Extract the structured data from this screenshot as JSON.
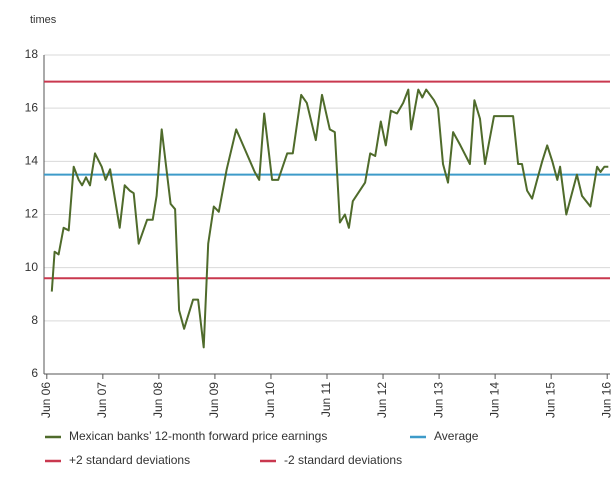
{
  "chart_data": {
    "type": "line",
    "y_axis_label": "times",
    "xlim": [
      2006.45,
      2016.55
    ],
    "xticks": [
      {
        "value": 2006.5,
        "label": "Jun 06"
      },
      {
        "value": 2007.5,
        "label": "Jun 07"
      },
      {
        "value": 2008.5,
        "label": "Jun 08"
      },
      {
        "value": 2009.5,
        "label": "Jun 09"
      },
      {
        "value": 2010.5,
        "label": "Jun 10"
      },
      {
        "value": 2011.5,
        "label": "Jun 11"
      },
      {
        "value": 2012.5,
        "label": "Jun 12"
      },
      {
        "value": 2013.5,
        "label": "Jun 13"
      },
      {
        "value": 2014.5,
        "label": "Jun 14"
      },
      {
        "value": 2015.5,
        "label": "Jun 15"
      },
      {
        "value": 2016.5,
        "label": "Jun 16"
      }
    ],
    "ylim": [
      6,
      18
    ],
    "yticks": [
      6,
      8,
      10,
      12,
      14,
      16,
      18
    ],
    "grid": true,
    "series": [
      {
        "name": "Mexican banks’ 12-month forward price earnings",
        "color": "#4f6b2b",
        "x": [
          2006.59,
          2006.64,
          2006.71,
          2006.8,
          2006.89,
          2006.98,
          2007.07,
          2007.13,
          2007.2,
          2007.27,
          2007.36,
          2007.48,
          2007.55,
          2007.63,
          2007.8,
          2007.89,
          2007.98,
          2008.05,
          2008.14,
          2008.29,
          2008.39,
          2008.46,
          2008.55,
          2008.71,
          2008.79,
          2008.86,
          2008.95,
          2009.11,
          2009.2,
          2009.3,
          2009.38,
          2009.48,
          2009.57,
          2009.71,
          2009.88,
          2010.21,
          2010.29,
          2010.38,
          2010.52,
          2010.63,
          2010.79,
          2010.89,
          2011.04,
          2011.14,
          2011.3,
          2011.41,
          2011.55,
          2011.64,
          2011.73,
          2011.82,
          2011.89,
          2011.96,
          2012.18,
          2012.27,
          2012.36,
          2012.46,
          2012.55,
          2012.64,
          2012.75,
          2012.86,
          2012.95,
          2013.0,
          2013.13,
          2013.2,
          2013.27,
          2013.41,
          2013.48,
          2013.57,
          2013.66,
          2013.75,
          2013.88,
          2014.05,
          2014.13,
          2014.23,
          2014.32,
          2014.48,
          2014.73,
          2014.82,
          2014.91,
          2014.98,
          2015.07,
          2015.16,
          2015.25,
          2015.34,
          2015.43,
          2015.52,
          2015.61,
          2015.66,
          2015.77,
          2015.96,
          2016.05,
          2016.2,
          2016.32,
          2016.38,
          2016.45,
          2016.52
        ],
        "values": [
          9.1,
          10.6,
          10.5,
          11.5,
          11.4,
          13.8,
          13.3,
          13.1,
          13.4,
          13.1,
          14.3,
          13.8,
          13.3,
          13.7,
          11.5,
          13.1,
          12.9,
          12.8,
          10.9,
          11.8,
          11.8,
          12.7,
          15.2,
          12.4,
          12.2,
          8.4,
          7.7,
          8.8,
          8.8,
          7.0,
          10.9,
          12.3,
          12.1,
          13.7,
          15.2,
          13.6,
          13.3,
          15.8,
          13.3,
          13.3,
          14.3,
          14.3,
          16.5,
          16.2,
          14.8,
          16.5,
          15.2,
          15.1,
          11.7,
          12.0,
          11.5,
          12.5,
          13.2,
          14.3,
          14.2,
          15.5,
          14.6,
          15.9,
          15.8,
          16.2,
          16.7,
          15.2,
          16.7,
          16.4,
          16.7,
          16.3,
          16.0,
          13.9,
          13.2,
          15.1,
          14.6,
          13.9,
          16.3,
          15.6,
          13.9,
          15.7,
          15.7,
          15.7,
          13.9,
          13.9,
          12.9,
          12.6,
          13.3,
          14.0,
          14.6,
          14.0,
          13.3,
          13.8,
          12.0,
          13.5,
          12.7,
          12.3,
          13.8,
          13.6,
          13.8,
          13.8
        ]
      }
    ],
    "reference_lines": [
      {
        "name": "Average",
        "color": "#3d9bc9",
        "value": 13.5
      },
      {
        "name": "+2 standard deviations",
        "color": "#c9384f",
        "value": 17.0
      },
      {
        "name": "-2 standard deviations",
        "color": "#c9384f",
        "value": 9.6
      }
    ]
  }
}
